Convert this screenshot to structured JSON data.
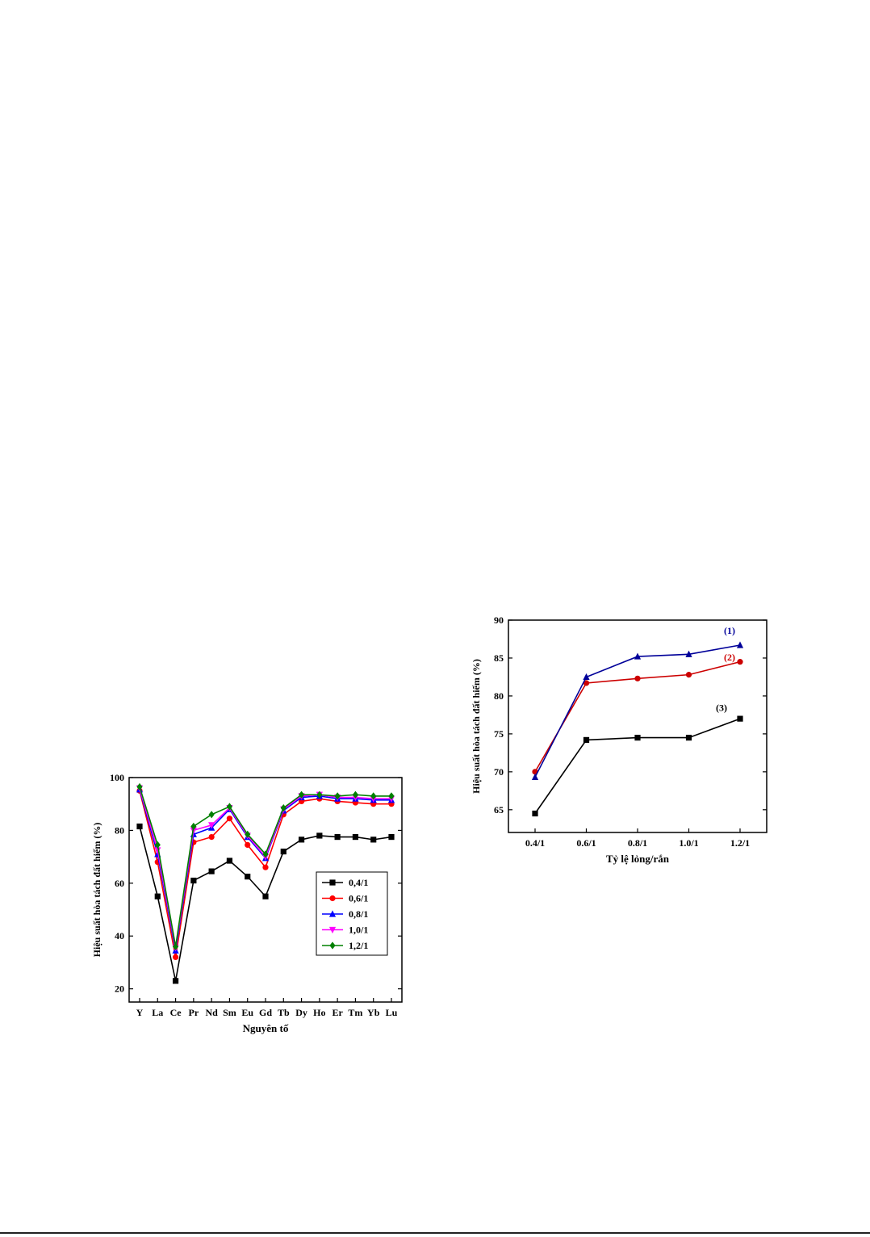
{
  "chart_data": [
    {
      "type": "line",
      "xlabel": "Nguyên tố",
      "ylabel": "Hiệu suất hòa tách đất hiếm (%)",
      "ylim": [
        15,
        100
      ],
      "yticks": [
        20,
        40,
        60,
        80,
        100
      ],
      "categories": [
        "Y",
        "La",
        "Ce",
        "Pr",
        "Nd",
        "Sm",
        "Eu",
        "Gd",
        "Tb",
        "Dy",
        "Ho",
        "Er",
        "Tm",
        "Yb",
        "Lu"
      ],
      "legend": "right-middle",
      "series": [
        {
          "name": "0,4/1",
          "color": "#000000",
          "marker": "square",
          "values": [
            81.5,
            55,
            23,
            61,
            64.5,
            68.5,
            62.5,
            55,
            72,
            76.5,
            78,
            77.5,
            77.5,
            76.5,
            77.5
          ]
        },
        {
          "name": "0,6/1",
          "color": "#ff0000",
          "marker": "circle",
          "values": [
            95,
            68,
            32,
            75.5,
            77.5,
            84.5,
            74.5,
            66,
            86,
            91,
            92,
            91,
            90.5,
            90,
            90
          ]
        },
        {
          "name": "0,8/1",
          "color": "#0000ff",
          "marker": "triangle",
          "values": [
            95.5,
            71,
            34.5,
            78.5,
            81,
            88,
            77.5,
            69.5,
            87.5,
            92.5,
            93,
            92,
            92,
            91.5,
            91.5
          ]
        },
        {
          "name": "1,0/1",
          "color": "#ff00ff",
          "marker": "tri-down",
          "values": [
            96,
            72.5,
            35.5,
            80,
            82,
            88.5,
            78,
            70,
            88,
            93,
            93.5,
            92.5,
            92.5,
            92,
            92
          ]
        },
        {
          "name": "1,2/1",
          "color": "#008000",
          "marker": "diamond",
          "values": [
            96.5,
            74.5,
            36,
            81.5,
            86,
            89,
            78.5,
            71,
            88.5,
            93.5,
            93.5,
            93,
            93.5,
            93,
            93
          ]
        }
      ]
    },
    {
      "type": "line",
      "xlabel": "Tỷ lệ lỏng/rắn",
      "ylabel": "Hiệu suất hòa tách đất hiếm (%)",
      "ylim": [
        62,
        90
      ],
      "yticks": [
        65,
        70,
        75,
        80,
        85,
        90
      ],
      "categories": [
        "0.4/1",
        "0.6/1",
        "0.8/1",
        "1.0/1",
        "1.2/1"
      ],
      "annotations": [
        "(1)",
        "(2)",
        "(3)"
      ],
      "series": [
        {
          "color": "#000000",
          "marker": "square",
          "values": [
            64.5,
            74.2,
            74.5,
            74.5,
            77.0
          ]
        },
        {
          "color": "#cc0000",
          "marker": "circle",
          "values": [
            70.0,
            81.7,
            82.3,
            82.8,
            84.5
          ]
        },
        {
          "color": "#000099",
          "marker": "triangle",
          "values": [
            69.3,
            82.5,
            85.2,
            85.5,
            86.7
          ]
        }
      ]
    }
  ]
}
